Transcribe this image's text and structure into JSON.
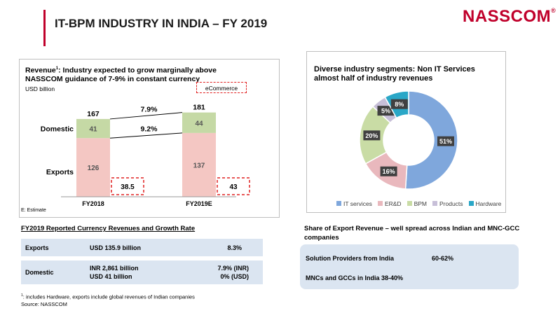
{
  "header": {
    "title": "IT-BPM INDUSTRY IN INDIA – FY 2019",
    "logo": "NASSCOM",
    "logo_mark": "®"
  },
  "revenue_panel": {
    "title_line1": "Revenue",
    "title_sup": "1",
    "title_line1_rest": ": Industry expected to grow marginally above",
    "title_line2": "NASSCOM guidance of 7-9% in constant currency",
    "unit": "USD billion",
    "ecommerce_label": "eCommerce",
    "estimate_note": "E: Estimate"
  },
  "chart_data": [
    {
      "type": "bar",
      "stacked": true,
      "unit": "USD billion",
      "categories": [
        "FY2018",
        "FY2019E"
      ],
      "series": [
        {
          "name": "Exports",
          "values": [
            126,
            137
          ],
          "color": "#f4c7c3"
        },
        {
          "name": "Domestic",
          "values": [
            41,
            44
          ],
          "color": "#c5d9a5"
        }
      ],
      "totals": [
        167,
        181
      ],
      "ecommerce_values": [
        "38.5",
        "43"
      ],
      "growth_labels": [
        {
          "segment": "Domestic",
          "label": "7.9%"
        },
        {
          "segment": "Exports",
          "label": "9.2%"
        }
      ],
      "row_labels": [
        "Domestic",
        "Exports"
      ],
      "ylim": [
        0,
        190
      ],
      "grid": false
    },
    {
      "type": "pie",
      "donut": true,
      "title_line1": "Diverse industry segments: Non IT Services",
      "title_line2": "almost half of industry revenues",
      "labels": [
        "IT services",
        "ER&D",
        "BPM",
        "Products",
        "Hardware"
      ],
      "values": [
        51,
        16,
        20,
        5,
        8
      ],
      "value_labels": [
        "51%",
        "16%",
        "20%",
        "5%",
        "8%"
      ],
      "colors": [
        "#7fa7dc",
        "#e9b8bd",
        "#c9dca5",
        "#c7bfd8",
        "#2aa7c7"
      ],
      "legend": "bottom"
    }
  ],
  "currency_table": {
    "title": "FY2019 Reported Currency Revenues and Growth Rate",
    "rows": [
      {
        "label": "Exports",
        "value": "USD 135.9 billion",
        "growth": "8.3%"
      },
      {
        "label": "Domestic",
        "value_line1": "INR 2,861 billion",
        "value_line2": "USD 41 billion",
        "growth_line1": "7.9% (INR)",
        "growth_line2": "0% (USD)"
      }
    ]
  },
  "footnotes": {
    "line1_sup": "1",
    "line1": ": includes Hardware, exports include global revenues of Indian companies",
    "line2": "Source: NASSCOM"
  },
  "export_share": {
    "title": "Share of Export Revenue – well spread across Indian and MNC-GCC companies",
    "rows": [
      {
        "label": "Solution Providers from India",
        "value": "60-62%"
      },
      {
        "label": "MNCs and GCCs in India",
        "value": "38-40%"
      }
    ]
  }
}
